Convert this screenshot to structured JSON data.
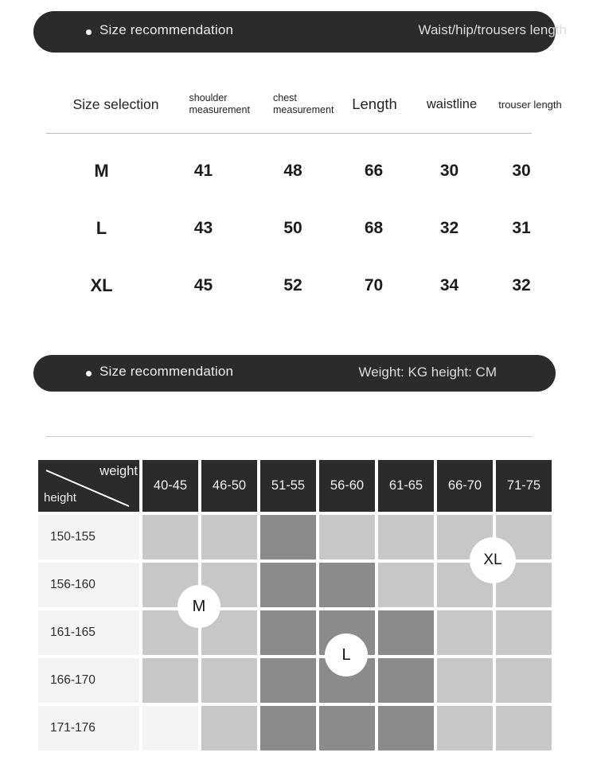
{
  "colors": {
    "banner_bg": "#2b2b2b",
    "matrix_header_bg": "#2b2b2b",
    "cell_medium": "#c7c7c7",
    "cell_dark": "#8b8b8b",
    "cell_blank": "#f4f4f4",
    "row_label_bg": "#f3f3f3"
  },
  "banner_top": {
    "title": "Size recommendation",
    "note": "Waist/hip/trousers length"
  },
  "size_table": {
    "headers": [
      "Size selection",
      "shoulder measurement",
      "chest measurement",
      "Length",
      "waistline",
      "trouser length"
    ],
    "rows": [
      {
        "size": "M",
        "values": [
          "41",
          "48",
          "66",
          "30",
          "30"
        ]
      },
      {
        "size": "L",
        "values": [
          "43",
          "50",
          "68",
          "32",
          "31"
        ]
      },
      {
        "size": "XL",
        "values": [
          "45",
          "52",
          "70",
          "34",
          "32"
        ]
      }
    ]
  },
  "banner_bottom": {
    "title": "Size recommendation",
    "note": "Weight: KG height: CM"
  },
  "matrix": {
    "corner": {
      "top_label": "weight",
      "bottom_label": "height"
    },
    "weight_columns": [
      "40-45",
      "46-50",
      "51-55",
      "56-60",
      "61-65",
      "66-70",
      "71-75"
    ],
    "height_rows": [
      "150-155",
      "156-160",
      "161-165",
      "166-170",
      "171-176"
    ],
    "cells": [
      [
        "medium",
        "medium",
        "dark",
        "medium",
        "medium",
        "medium",
        "medium"
      ],
      [
        "medium",
        "medium",
        "dark",
        "dark",
        "medium",
        "medium",
        "medium"
      ],
      [
        "medium",
        "medium",
        "dark",
        "dark",
        "dark",
        "medium",
        "medium"
      ],
      [
        "medium",
        "medium",
        "dark",
        "dark",
        "dark",
        "medium",
        "medium"
      ],
      [
        "blank",
        "medium",
        "dark",
        "dark",
        "dark",
        "medium",
        "medium"
      ]
    ],
    "markers": [
      {
        "label": "M"
      },
      {
        "label": "L"
      },
      {
        "label": "XL"
      }
    ]
  }
}
